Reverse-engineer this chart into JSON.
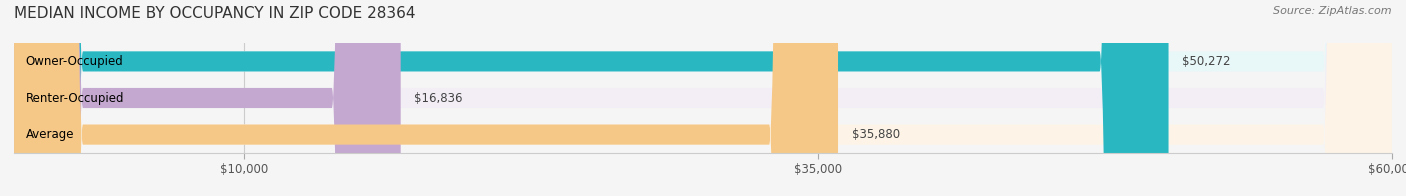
{
  "title": "MEDIAN INCOME BY OCCUPANCY IN ZIP CODE 28364",
  "source": "Source: ZipAtlas.com",
  "categories": [
    "Owner-Occupied",
    "Renter-Occupied",
    "Average"
  ],
  "values": [
    50272,
    16836,
    35880
  ],
  "labels": [
    "$50,272",
    "$16,836",
    "$35,880"
  ],
  "bar_colors": [
    "#29b8c2",
    "#c4a8d0",
    "#f5c888"
  ],
  "bar_bg_colors": [
    "#e8f7f8",
    "#f3eef6",
    "#fdf4e7"
  ],
  "xlim": [
    0,
    60000
  ],
  "xticks": [
    10000,
    35000,
    60000
  ],
  "xticklabels": [
    "$10,000",
    "$35,000",
    "$60,000"
  ],
  "title_fontsize": 11,
  "source_fontsize": 8,
  "label_fontsize": 8.5,
  "bar_label_fontsize": 8.5,
  "cat_fontsize": 8.5,
  "bar_height": 0.55,
  "background_color": "#f5f5f5"
}
